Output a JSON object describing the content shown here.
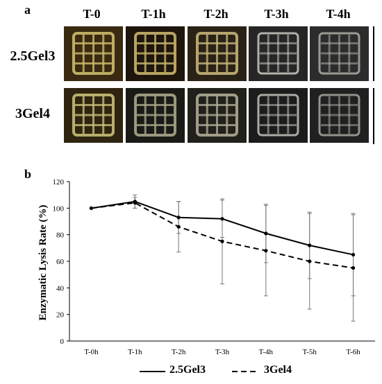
{
  "panel_a": {
    "letter": "a",
    "columns": [
      "T-0",
      "T-1h",
      "T-2h",
      "T-3h",
      "T-4h"
    ],
    "rows": [
      "2.5Gel3",
      "3Gel4"
    ]
  },
  "panel_b": {
    "letter": "b"
  },
  "chart_data": {
    "type": "line",
    "title": "",
    "xlabel": "",
    "ylabel": "Enzymatic Lysis Rate (%)",
    "categories": [
      "T-0h",
      "T-1h",
      "T-2h",
      "T-3h",
      "T-4h",
      "T-5h",
      "T-6h"
    ],
    "ylim": [
      0,
      120
    ],
    "yticks": [
      0,
      20,
      40,
      60,
      80,
      100,
      120
    ],
    "grid": false,
    "legend_position": "bottom",
    "series": [
      {
        "name": "2.5Gel3",
        "style": "solid",
        "color": "#000000",
        "values": [
          100,
          105,
          93,
          92,
          81,
          72,
          65
        ],
        "error": [
          0,
          5,
          12,
          14,
          22,
          25,
          31
        ]
      },
      {
        "name": "3Gel4",
        "style": "dashed",
        "color": "#000000",
        "values": [
          100,
          104,
          86,
          75,
          68,
          60,
          55
        ],
        "error": [
          0,
          4,
          19,
          32,
          34,
          36,
          40
        ]
      }
    ]
  }
}
